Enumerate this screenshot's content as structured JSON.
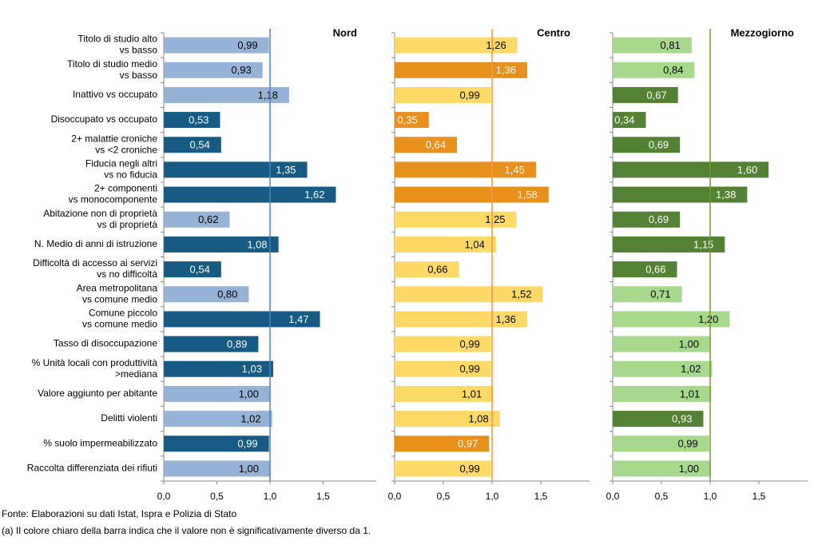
{
  "chart_data": {
    "type": "barh",
    "categories": [
      [
        "Titolo di studio alto",
        "vs basso"
      ],
      [
        "Titolo di studio medio",
        "vs basso"
      ],
      [
        "Inattivo vs occupato"
      ],
      [
        "Disoccupato vs occupato"
      ],
      [
        "2+ malattie croniche",
        "vs <2 croniche"
      ],
      [
        "Fiducia negli altri",
        "vs no fiducia"
      ],
      [
        "2+ componenti",
        "vs monocomponente"
      ],
      [
        "Abitazione non di proprietà",
        "vs di proprietà"
      ],
      [
        "N. Medio di anni di istruzione"
      ],
      [
        "Difficoltà di accesso ai servizi",
        "vs no difficoltà"
      ],
      [
        "Area metropolitana",
        "vs comune medio"
      ],
      [
        "Comune piccolo",
        "vs comune medio"
      ],
      [
        "Tasso di disoccupazione"
      ],
      [
        "% Unità locali con produttività",
        ">mediana"
      ],
      [
        "Valore aggiunto per abitante"
      ],
      [
        "Delitti violenti"
      ],
      [
        "% suolo impermeabilizzato"
      ],
      [
        "Raccolta differenziata dei rifiuti"
      ]
    ],
    "xlim": [
      0,
      2
    ],
    "xticks": [
      {
        "value": 0,
        "label": "0,0"
      },
      {
        "value": 0.5,
        "label": "0,5"
      },
      {
        "value": 1,
        "label": "1,0"
      },
      {
        "value": 1.5,
        "label": "1,5"
      }
    ],
    "reference_line": 1,
    "series": [
      {
        "name": "Nord",
        "color": "#4f81bd",
        "values": [
          0.99,
          0.93,
          1.18,
          0.53,
          0.54,
          1.35,
          1.62,
          0.62,
          1.08,
          0.54,
          0.8,
          1.47,
          0.89,
          1.03,
          1.0,
          1.02,
          0.99,
          1.0
        ],
        "value_labels": [
          "0,99",
          "0,93",
          "1,18",
          "0,53",
          "0,54",
          "1,35",
          "1,62",
          "0,62",
          "1,08",
          "0,54",
          "0,80",
          "1,47",
          "0,89",
          "1,03",
          "1,00",
          "1,02",
          "0,99",
          "1,00"
        ],
        "colors": [
          "#95b3d7",
          "#95b3d7",
          "#95b3d7",
          "#175a84",
          "#175a84",
          "#175a84",
          "#175a84",
          "#95b3d7",
          "#175a84",
          "#175a84",
          "#95b3d7",
          "#175a84",
          "#175a84",
          "#175a84",
          "#95b3d7",
          "#95b3d7",
          "#175a84",
          "#95b3d7"
        ]
      },
      {
        "name": "Centro",
        "color": "#f79646",
        "values": [
          1.26,
          1.36,
          0.99,
          0.35,
          0.64,
          1.45,
          1.58,
          1.25,
          1.04,
          0.66,
          1.52,
          1.36,
          0.99,
          0.99,
          1.01,
          1.08,
          0.97,
          0.99
        ],
        "value_labels": [
          "1,26",
          "1,36",
          "0,99",
          "0,35",
          "0,64",
          "1,45",
          "1,58",
          "1,25",
          "1,04",
          "0,66",
          "1,52",
          "1,36",
          "0,99",
          "0,99",
          "1,01",
          "1,08",
          "0,97",
          "0,99"
        ],
        "colors": [
          "#ffd966",
          "#e8901c",
          "#ffd966",
          "#e8901c",
          "#e8901c",
          "#e8901c",
          "#e8901c",
          "#ffd966",
          "#ffd966",
          "#ffd966",
          "#ffd966",
          "#ffd966",
          "#ffd966",
          "#ffd966",
          "#ffd966",
          "#ffd966",
          "#e8901c",
          "#ffd966"
        ]
      },
      {
        "name": "Mezzogiorno",
        "color": "#77933c",
        "values": [
          0.81,
          0.84,
          0.67,
          0.34,
          0.69,
          1.6,
          1.38,
          0.69,
          1.15,
          0.66,
          0.71,
          1.2,
          1.0,
          1.02,
          1.01,
          0.93,
          0.99,
          1.0
        ],
        "value_labels": [
          "0,81",
          "0,84",
          "0,67",
          "0,34",
          "0,69",
          "1,60",
          "1,38",
          "0,69",
          "1,15",
          "0,66",
          "0,71",
          "1,20",
          "1,00",
          "1,02",
          "1,01",
          "0,93",
          "0,99",
          "1,00"
        ],
        "colors": [
          "#a6d98c",
          "#a6d98c",
          "#548235",
          "#548235",
          "#548235",
          "#548235",
          "#548235",
          "#548235",
          "#548235",
          "#548235",
          "#a6d98c",
          "#a6d98c",
          "#a6d98c",
          "#a6d98c",
          "#a6d98c",
          "#548235",
          "#a6d98c",
          "#a6d98c"
        ]
      }
    ],
    "notes": [
      "Fonte: Elaborazioni su dati Istat, Ispra e Polizia di Stato",
      "(a) Il colore chiaro della barra indica che il valore non è significativamente diverso da 1."
    ]
  }
}
